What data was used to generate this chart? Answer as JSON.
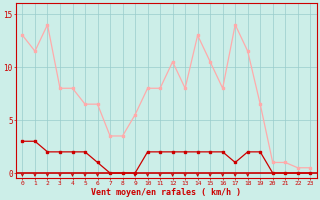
{
  "hours": [
    0,
    1,
    2,
    3,
    4,
    5,
    6,
    7,
    8,
    9,
    10,
    11,
    12,
    13,
    14,
    15,
    16,
    17,
    18,
    19,
    20,
    21,
    22,
    23
  ],
  "wind_mean": [
    3,
    3,
    2,
    2,
    2,
    2,
    1,
    0,
    0,
    0,
    2,
    2,
    2,
    2,
    2,
    2,
    2,
    1,
    2,
    2,
    0,
    0,
    0,
    0
  ],
  "wind_gust": [
    13,
    11.5,
    14,
    8,
    8,
    6.5,
    6.5,
    3.5,
    3.5,
    5.5,
    8,
    8,
    10.5,
    8,
    13,
    10.5,
    8,
    14,
    11.5,
    6.5,
    1,
    1,
    0.5,
    0.5
  ],
  "arrow_hours": [
    0,
    1,
    2,
    3,
    4,
    5,
    6,
    9,
    10,
    11,
    12,
    13,
    14,
    15,
    16,
    17,
    18
  ],
  "mean_color": "#cc0000",
  "gust_color": "#ffaaaa",
  "bg_color": "#cceee8",
  "grid_color": "#99cccc",
  "xlabel": "Vent moyen/en rafales ( km/h )",
  "yticks": [
    0,
    5,
    10,
    15
  ],
  "xlim": [
    -0.5,
    23.5
  ],
  "ylim": [
    -0.5,
    16.0
  ]
}
